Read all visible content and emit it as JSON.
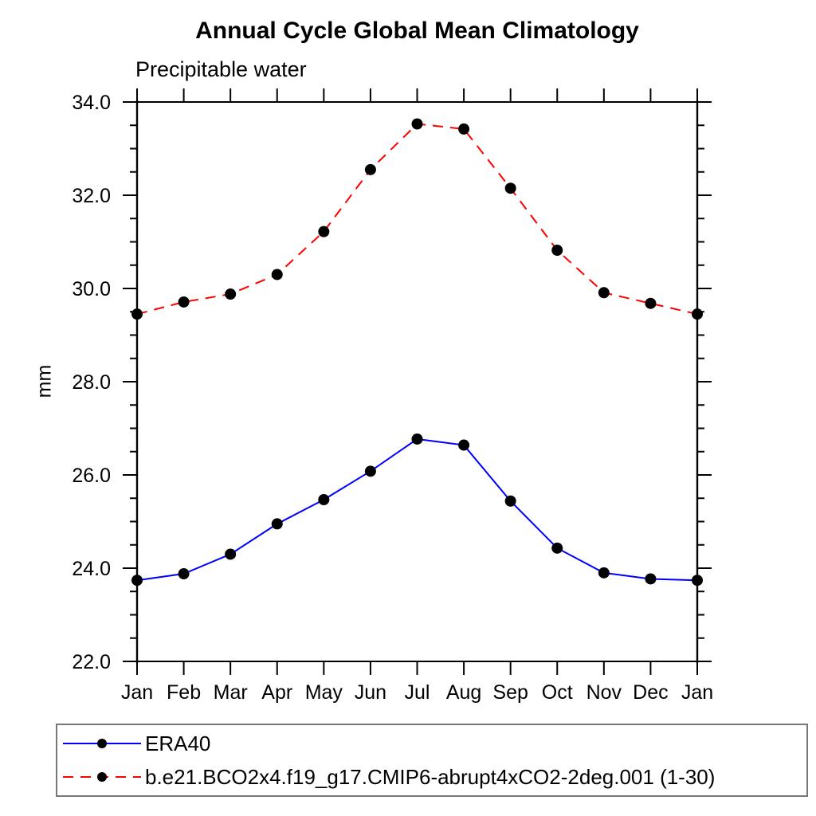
{
  "chart_data": {
    "type": "line",
    "title": "Annual Cycle Global Mean Climatology",
    "subtitle": "Precipitable water",
    "ylabel": "mm",
    "xlabel": "",
    "categories": [
      "Jan",
      "Feb",
      "Mar",
      "Apr",
      "May",
      "Jun",
      "Jul",
      "Aug",
      "Sep",
      "Oct",
      "Nov",
      "Dec",
      "Jan"
    ],
    "series": [
      {
        "name": "ERA40",
        "color": "#0000ff",
        "line_style": "solid",
        "marker": "filled-circle",
        "marker_color": "#000000",
        "values": [
          23.74,
          23.88,
          24.3,
          24.95,
          25.47,
          26.08,
          26.77,
          26.64,
          25.44,
          24.43,
          23.9,
          23.77,
          23.74
        ]
      },
      {
        "name": "b.e21.BCO2x4.f19_g17.CMIP6-abrupt4xCO2-2deg.001 (1-30)",
        "color": "#ff0000",
        "line_style": "dashed",
        "marker": "filled-circle",
        "marker_color": "#000000",
        "values": [
          29.45,
          29.71,
          29.88,
          30.3,
          31.22,
          32.55,
          33.53,
          33.42,
          32.15,
          30.82,
          29.91,
          29.68,
          29.45
        ]
      }
    ],
    "ylim": [
      22,
      34
    ],
    "y_major_ticks": [
      22,
      24,
      26,
      28,
      30,
      32,
      34
    ],
    "y_tick_labels": [
      "22.0",
      "24.0",
      "26.0",
      "28.0",
      "30.0",
      "32.0",
      "34.0"
    ],
    "y_minor_step": 0.5,
    "grid": false,
    "legend_position": "bottom",
    "axis_color": "#000000",
    "text_color": "#000000"
  }
}
